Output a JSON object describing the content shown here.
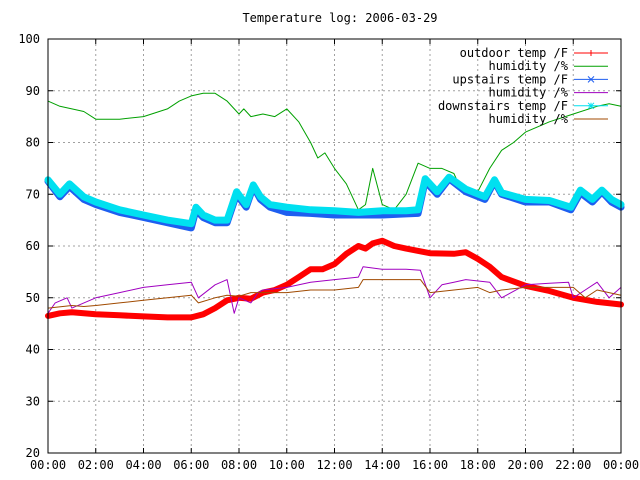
{
  "chart_data": {
    "type": "line",
    "title": "Temperature log: 2006-03-29",
    "xlabel": "",
    "ylabel": "",
    "xlim": [
      0,
      24
    ],
    "ylim": [
      20,
      100
    ],
    "grid": true,
    "legend_position": "top-right",
    "y_ticks": [
      {
        "value": 20,
        "label": "20"
      },
      {
        "value": 30,
        "label": "30"
      },
      {
        "value": 40,
        "label": "40"
      },
      {
        "value": 50,
        "label": "50"
      },
      {
        "value": 60,
        "label": "60"
      },
      {
        "value": 70,
        "label": "70"
      },
      {
        "value": 80,
        "label": "80"
      },
      {
        "value": 90,
        "label": "90"
      },
      {
        "value": 100,
        "label": "100"
      }
    ],
    "x_ticks": [
      {
        "value": 0,
        "label": "00:00"
      },
      {
        "value": 2,
        "label": "02:00"
      },
      {
        "value": 4,
        "label": "04:00"
      },
      {
        "value": 6,
        "label": "06:00"
      },
      {
        "value": 8,
        "label": "08:00"
      },
      {
        "value": 10,
        "label": "10:00"
      },
      {
        "value": 12,
        "label": "12:00"
      },
      {
        "value": 14,
        "label": "14:00"
      },
      {
        "value": 16,
        "label": "16:00"
      },
      {
        "value": 18,
        "label": "18:00"
      },
      {
        "value": 20,
        "label": "20:00"
      },
      {
        "value": 22,
        "label": "22:00"
      },
      {
        "value": 24,
        "label": "00:00"
      }
    ],
    "series": [
      {
        "name": "outdoor temp /F",
        "color": "#ff0000",
        "marker": "plus",
        "x": [
          0,
          0.5,
          1,
          2,
          3,
          4,
          5,
          6,
          6.5,
          7,
          7.5,
          8,
          8.5,
          9,
          9.5,
          10,
          10.5,
          11,
          11.5,
          12,
          12.5,
          13,
          13.3,
          13.6,
          14,
          14.5,
          15,
          16,
          17,
          17.5,
          18,
          18.5,
          19,
          20,
          21,
          22,
          23,
          24
        ],
        "y": [
          46.5,
          47,
          47.2,
          46.8,
          46.6,
          46.4,
          46.2,
          46.2,
          46.8,
          48,
          49.5,
          50,
          49.8,
          51,
          51.5,
          52.5,
          54,
          55.5,
          55.5,
          56.5,
          58.5,
          60,
          59.5,
          60.5,
          61,
          60,
          59.5,
          58.6,
          58.5,
          58.8,
          57.5,
          56,
          54,
          52.3,
          51.3,
          50,
          49.2,
          48.7
        ]
      },
      {
        "name": "humidity /%",
        "color": "#00a000",
        "marker": "none",
        "x": [
          0,
          0.5,
          1,
          1.5,
          2,
          3,
          4,
          5,
          5.5,
          6,
          6.5,
          7,
          7.5,
          8,
          8.2,
          8.5,
          9,
          9.5,
          10,
          10.5,
          11,
          11.3,
          11.6,
          12,
          12.5,
          13,
          13.3,
          13.6,
          14,
          14.5,
          15,
          15.5,
          16,
          16.5,
          17,
          17.2,
          17.5,
          18,
          18.5,
          19,
          19.5,
          20,
          21,
          22,
          23,
          23.5,
          24
        ],
        "y": [
          88,
          87,
          86.5,
          86,
          84.5,
          84.5,
          85,
          86.5,
          88,
          89,
          89.5,
          89.5,
          88,
          85.5,
          86.5,
          85,
          85.5,
          85,
          86.5,
          84,
          80,
          77,
          78,
          75,
          72,
          67,
          68,
          75,
          68,
          67,
          70,
          76,
          75,
          75,
          74,
          72,
          70,
          70.5,
          75,
          78.5,
          80,
          82,
          84,
          85.5,
          87,
          87.5,
          87
        ]
      },
      {
        "name": "upstairs temp /F",
        "color": "#1e5ef0",
        "marker": "cross",
        "x": [
          0,
          0.5,
          0.9,
          1.5,
          2,
          3,
          4,
          5,
          6,
          6.2,
          6.5,
          7,
          7.5,
          7.9,
          8.3,
          8.6,
          8.9,
          9.3,
          10,
          11,
          12,
          13,
          14,
          15,
          15.5,
          15.8,
          16.3,
          16.8,
          17.5,
          18.3,
          18.7,
          19,
          20,
          21,
          21.9,
          22.3,
          22.8,
          23.2,
          23.6,
          24
        ],
        "y": [
          72.5,
          69.5,
          71.5,
          69,
          68,
          66.5,
          65.5,
          64.5,
          63.5,
          67,
          65.5,
          64.5,
          64.5,
          70,
          67.5,
          71.5,
          69,
          67.5,
          66.5,
          66.3,
          66,
          66,
          66,
          66.2,
          66.3,
          72.5,
          70,
          73,
          70.5,
          69,
          72.5,
          70,
          68.5,
          68.5,
          67,
          70.3,
          68.5,
          70.5,
          68.5,
          67.5
        ]
      },
      {
        "name": "humidity /%",
        "color": "#a000c0",
        "marker": "none",
        "x": [
          0,
          0.3,
          0.8,
          1,
          2,
          3,
          4,
          5,
          6,
          6.3,
          7,
          7.5,
          7.8,
          8,
          8.5,
          8.8,
          9,
          10,
          11,
          12,
          13,
          13.2,
          14,
          15,
          15.6,
          16,
          16.5,
          17,
          17.5,
          18.5,
          19,
          20,
          21,
          21.8,
          22,
          22.5,
          23,
          23.5,
          24
        ],
        "y": [
          47,
          49,
          50,
          48,
          50,
          51,
          52,
          52.5,
          53,
          50,
          52.5,
          53.5,
          47,
          50,
          49,
          51,
          51.5,
          52,
          53,
          53.5,
          54,
          56,
          55.5,
          55.5,
          55.3,
          50,
          52.5,
          53,
          53.5,
          53,
          50,
          52.5,
          52.8,
          53,
          50,
          51.5,
          53,
          50,
          52
        ]
      },
      {
        "name": "downstairs temp /F",
        "color": "#00e0f0",
        "marker": "star",
        "x": [
          0,
          0.5,
          0.9,
          1.5,
          2,
          3,
          4,
          5,
          6,
          6.2,
          6.5,
          7,
          7.5,
          7.9,
          8.3,
          8.6,
          8.9,
          9.3,
          10,
          11,
          12,
          13,
          14,
          15,
          15.5,
          15.8,
          16.3,
          16.8,
          17.5,
          18.3,
          18.7,
          19,
          20,
          21,
          21.9,
          22.3,
          22.8,
          23.2,
          23.6,
          24
        ],
        "y": [
          72.8,
          70,
          72,
          69.5,
          68.5,
          67,
          66,
          65,
          64.3,
          67.5,
          66,
          65,
          65,
          70.5,
          68,
          71.8,
          69.5,
          68,
          67.5,
          67,
          66.8,
          66.5,
          66.8,
          66.8,
          67,
          73,
          70.5,
          73.3,
          71,
          69.5,
          72.8,
          70.3,
          69,
          68.8,
          67.5,
          70.8,
          69,
          70.8,
          69,
          68
        ]
      },
      {
        "name": "humidity /%",
        "color": "#a04a00",
        "marker": "none",
        "x": [
          0,
          1,
          1.5,
          2,
          3,
          4,
          5,
          6,
          6.3,
          7,
          7.5,
          8,
          8.5,
          9,
          10,
          11,
          12,
          13,
          13.2,
          14,
          15,
          15.6,
          16,
          17,
          18,
          18.5,
          19,
          20,
          21,
          22,
          22.5,
          23,
          24
        ],
        "y": [
          48,
          48.5,
          48.3,
          48.5,
          49,
          49.5,
          50,
          50.5,
          49,
          50,
          50.5,
          50.3,
          51,
          51,
          51,
          51.5,
          51.5,
          52,
          53.5,
          53.5,
          53.5,
          53.5,
          51,
          51.5,
          52,
          51,
          51.5,
          52,
          52,
          52,
          50,
          51.5,
          50.5
        ]
      }
    ]
  }
}
